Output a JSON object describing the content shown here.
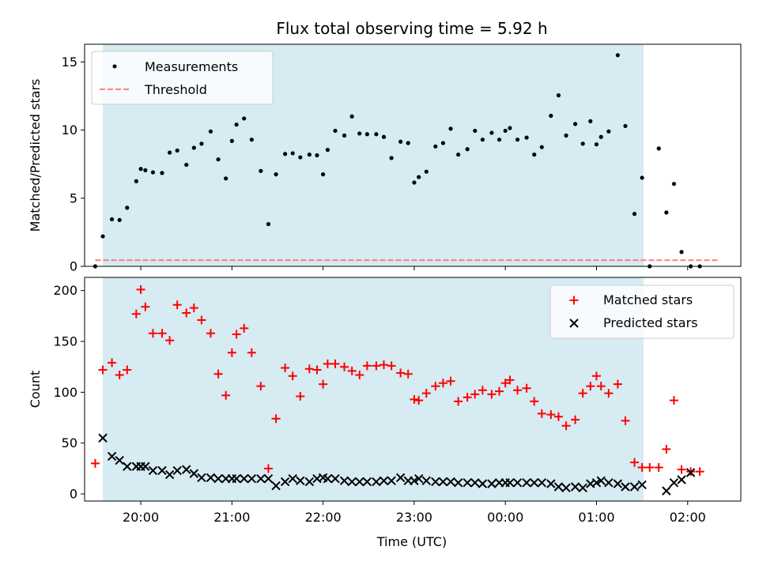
{
  "chart_data": [
    {
      "type": "scatter",
      "title": "Flux total observing time = 5.92 h",
      "xlabel": "",
      "ylabel": "Matched/Predicted stars",
      "xlim": [
        "19:23",
        "02:35"
      ],
      "ylim": [
        0,
        16.3
      ],
      "yticks": [
        0,
        5,
        10,
        15
      ],
      "xticks": [
        "20:00",
        "21:00",
        "22:00",
        "23:00",
        "00:00",
        "01:00",
        "02:00"
      ],
      "shaded_span": {
        "start": "19:35",
        "end": "01:31",
        "color": "#add8e6"
      },
      "legend": {
        "placement": "top-left",
        "entries": [
          "Measurements",
          "Threshold"
        ]
      },
      "series": [
        {
          "name": "Measurements",
          "kind": "points",
          "color": "#000000",
          "x": [
            "19:30",
            "19:35",
            "19:41",
            "19:46",
            "19:51",
            "19:57",
            "20:00",
            "20:03",
            "20:08",
            "20:14",
            "20:19",
            "20:24",
            "20:30",
            "20:35",
            "20:40",
            "20:46",
            "20:51",
            "20:56",
            "21:00",
            "21:03",
            "21:08",
            "21:13",
            "21:19",
            "21:24",
            "21:29",
            "21:35",
            "21:40",
            "21:45",
            "21:51",
            "21:56",
            "22:00",
            "22:03",
            "22:08",
            "22:14",
            "22:19",
            "22:24",
            "22:29",
            "22:35",
            "22:40",
            "22:45",
            "22:51",
            "22:56",
            "23:00",
            "23:03",
            "23:08",
            "23:14",
            "23:19",
            "23:24",
            "23:29",
            "23:35",
            "23:40",
            "23:45",
            "23:51",
            "23:56",
            "00:00",
            "00:03",
            "00:08",
            "00:14",
            "00:19",
            "00:24",
            "00:30",
            "00:35",
            "00:40",
            "00:46",
            "00:51",
            "00:56",
            "01:00",
            "01:03",
            "01:08",
            "01:14",
            "01:19",
            "01:25",
            "01:30",
            "01:35",
            "01:41",
            "01:46",
            "01:51",
            "01:56",
            "02:02",
            "02:08"
          ],
          "y": [
            0,
            2.2,
            3.45,
            3.4,
            4.3,
            6.25,
            7.15,
            7.05,
            6.9,
            6.85,
            8.35,
            8.5,
            7.45,
            8.7,
            9.0,
            9.9,
            7.85,
            6.45,
            9.2,
            10.4,
            10.85,
            9.3,
            7.0,
            3.1,
            6.75,
            8.25,
            8.3,
            8.0,
            8.2,
            8.15,
            6.75,
            8.55,
            9.95,
            9.6,
            11.0,
            9.75,
            9.7,
            9.7,
            9.5,
            7.95,
            9.15,
            9.05,
            6.15,
            6.55,
            6.95,
            8.8,
            9.05,
            10.1,
            8.2,
            8.6,
            9.95,
            9.3,
            9.8,
            9.3,
            9.95,
            10.15,
            9.3,
            9.45,
            8.2,
            8.75,
            11.05,
            12.55,
            9.6,
            10.45,
            9.0,
            10.65,
            8.95,
            9.5,
            9.9,
            15.5,
            10.3,
            3.85,
            6.5,
            0,
            8.65,
            3.95,
            6.05,
            1.05,
            0,
            0
          ]
        },
        {
          "name": "Threshold",
          "kind": "dashed-line",
          "color": "#ff7f7f",
          "x": [
            "19:30",
            "02:20"
          ],
          "y": [
            0.45,
            0.45
          ]
        }
      ]
    },
    {
      "type": "scatter",
      "title": "",
      "xlabel": "Time (UTC)",
      "ylabel": "Count",
      "xlim": [
        "19:23",
        "02:35"
      ],
      "ylim": [
        -7,
        213
      ],
      "yticks": [
        0,
        50,
        100,
        150,
        200
      ],
      "xticks": [
        "20:00",
        "21:00",
        "22:00",
        "23:00",
        "00:00",
        "01:00",
        "02:00"
      ],
      "shaded_span": {
        "start": "19:35",
        "end": "01:31",
        "color": "#add8e6"
      },
      "legend": {
        "placement": "top-right",
        "entries": [
          "Matched stars",
          "Predicted stars"
        ]
      },
      "series": [
        {
          "name": "Matched stars",
          "kind": "plus",
          "color": "#ff0000",
          "x": [
            "19:30",
            "19:35",
            "19:41",
            "19:46",
            "19:51",
            "19:57",
            "20:00",
            "20:03",
            "20:08",
            "20:14",
            "20:19",
            "20:24",
            "20:30",
            "20:35",
            "20:40",
            "20:46",
            "20:51",
            "20:56",
            "21:00",
            "21:03",
            "21:08",
            "21:13",
            "21:19",
            "21:24",
            "21:29",
            "21:35",
            "21:40",
            "21:45",
            "21:51",
            "21:56",
            "22:00",
            "22:03",
            "22:08",
            "22:14",
            "22:19",
            "22:24",
            "22:29",
            "22:35",
            "22:40",
            "22:45",
            "22:51",
            "22:56",
            "23:00",
            "23:03",
            "23:08",
            "23:14",
            "23:19",
            "23:24",
            "23:29",
            "23:35",
            "23:40",
            "23:45",
            "23:51",
            "23:56",
            "00:00",
            "00:03",
            "00:08",
            "00:14",
            "00:19",
            "00:24",
            "00:30",
            "00:35",
            "00:40",
            "00:46",
            "00:51",
            "00:56",
            "01:00",
            "01:03",
            "01:08",
            "01:14",
            "01:19",
            "01:25",
            "01:30",
            "01:35",
            "01:41",
            "01:46",
            "01:51",
            "01:56",
            "02:02",
            "02:08"
          ],
          "y": [
            30,
            122,
            129,
            117,
            122,
            177,
            201,
            184,
            158,
            158,
            151,
            186,
            178,
            183,
            171,
            158,
            118,
            97,
            139,
            157,
            163,
            139,
            106,
            25,
            74,
            124,
            116,
            96,
            123,
            122,
            108,
            128,
            128,
            125,
            121,
            117,
            126,
            126,
            127,
            126,
            119,
            118,
            93,
            92,
            99,
            106,
            109,
            111,
            91,
            95,
            98,
            102,
            98,
            101,
            109,
            112,
            102,
            104,
            91,
            79,
            78,
            76,
            67,
            73,
            99,
            106,
            116,
            106,
            99,
            108,
            72,
            31,
            26,
            26,
            26,
            44,
            92,
            24,
            22,
            22
          ]
        },
        {
          "name": "Predicted stars",
          "kind": "x",
          "color": "#000000",
          "x": [
            "19:35",
            "19:41",
            "19:46",
            "19:51",
            "19:57",
            "20:00",
            "20:03",
            "20:08",
            "20:14",
            "20:19",
            "20:24",
            "20:30",
            "20:35",
            "20:40",
            "20:46",
            "20:51",
            "20:56",
            "21:00",
            "21:03",
            "21:08",
            "21:13",
            "21:19",
            "21:24",
            "21:29",
            "21:35",
            "21:40",
            "21:45",
            "21:51",
            "21:56",
            "22:00",
            "22:03",
            "22:08",
            "22:14",
            "22:19",
            "22:24",
            "22:29",
            "22:35",
            "22:40",
            "22:45",
            "22:51",
            "22:56",
            "23:00",
            "23:03",
            "23:08",
            "23:14",
            "23:19",
            "23:24",
            "23:29",
            "23:35",
            "23:40",
            "23:45",
            "23:51",
            "23:56",
            "00:00",
            "00:03",
            "00:08",
            "00:14",
            "00:19",
            "00:24",
            "00:30",
            "00:35",
            "00:40",
            "00:46",
            "00:51",
            "00:56",
            "01:00",
            "01:03",
            "01:08",
            "01:14",
            "01:19",
            "01:25",
            "01:30",
            "01:46",
            "01:51",
            "01:56",
            "02:02"
          ],
          "y": [
            55,
            37,
            33,
            27,
            27,
            27,
            27,
            23,
            23,
            19,
            23,
            24,
            20,
            16,
            16,
            15,
            15,
            15,
            15,
            15,
            15,
            15,
            15,
            8,
            12,
            15,
            13,
            12,
            15,
            16,
            15,
            15,
            13,
            12,
            12,
            12,
            12,
            13,
            13,
            16,
            13,
            13,
            15,
            13,
            12,
            12,
            12,
            11,
            11,
            11,
            10,
            10,
            11,
            11,
            11,
            11,
            11,
            11,
            11,
            10,
            7,
            6,
            7,
            6,
            10,
            11,
            13,
            11,
            10,
            7,
            7,
            9,
            3,
            11,
            14,
            21
          ]
        }
      ]
    }
  ]
}
